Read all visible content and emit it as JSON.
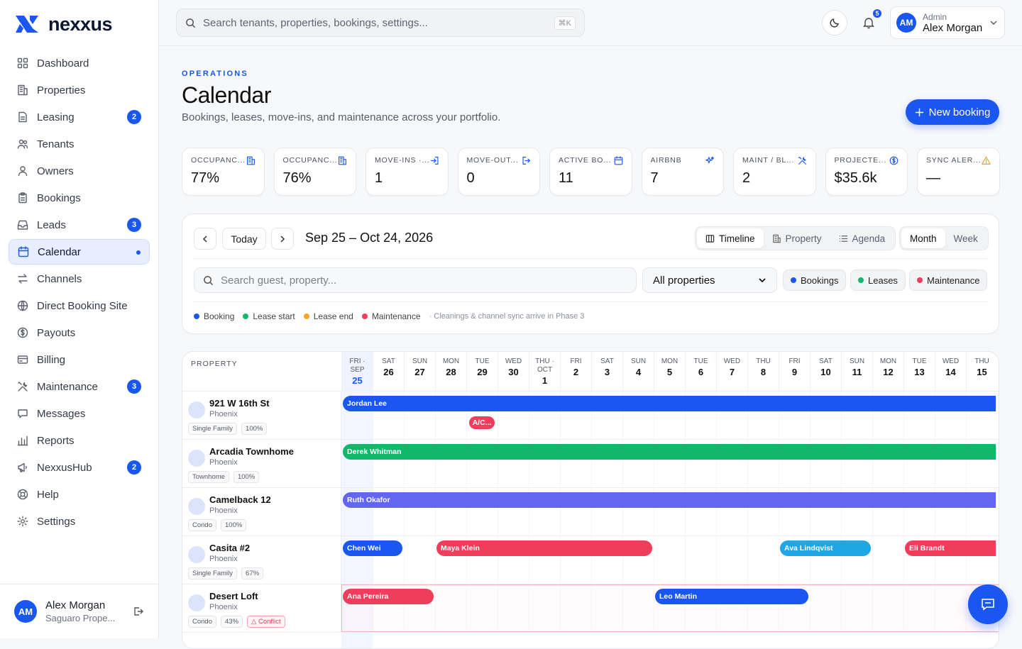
{
  "brand": {
    "name": "nexxus"
  },
  "sidebar": {
    "items": [
      {
        "label": "Dashboard",
        "icon": "grid-icon"
      },
      {
        "label": "Properties",
        "icon": "building-icon"
      },
      {
        "label": "Leasing",
        "icon": "document-icon",
        "badge": "2"
      },
      {
        "label": "Tenants",
        "icon": "users-icon"
      },
      {
        "label": "Owners",
        "icon": "user-icon"
      },
      {
        "label": "Bookings",
        "icon": "clipboard-icon"
      },
      {
        "label": "Leads",
        "icon": "inbox-icon",
        "badge": "3"
      },
      {
        "label": "Calendar",
        "icon": "calendar-icon",
        "active": true
      },
      {
        "label": "Channels",
        "icon": "arrows-icon"
      },
      {
        "label": "Direct Booking Site",
        "icon": "globe-icon"
      },
      {
        "label": "Payouts",
        "icon": "dollar-icon"
      },
      {
        "label": "Billing",
        "icon": "card-icon"
      },
      {
        "label": "Maintenance",
        "icon": "tools-icon",
        "badge": "3"
      },
      {
        "label": "Messages",
        "icon": "chat-icon"
      },
      {
        "label": "Reports",
        "icon": "chart-icon"
      },
      {
        "label": "NexxusHub",
        "icon": "megaphone-icon",
        "badge": "2"
      },
      {
        "label": "Help",
        "icon": "lifebuoy-icon"
      },
      {
        "label": "Settings",
        "icon": "gear-icon"
      }
    ],
    "user": {
      "initials": "AM",
      "name": "Alex Morgan",
      "org": "Saguaro Prope..."
    }
  },
  "topbar": {
    "search_placeholder": "Search tenants, properties, bookings, settings...",
    "shortcut": "⌘K",
    "notifications": "5",
    "user": {
      "initials": "AM",
      "role": "Admin",
      "name": "Alex Morgan"
    }
  },
  "page": {
    "eyebrow": "OPERATIONS",
    "title": "Calendar",
    "subtitle": "Bookings, leases, move-ins, and maintenance across your portfolio.",
    "new_button": "New booking"
  },
  "kpis": [
    {
      "label": "OCCUPANC...",
      "value": "77%",
      "icon": "building-icon",
      "color": "#1a56f0"
    },
    {
      "label": "OCCUPANC...",
      "value": "76%",
      "icon": "building-icon",
      "color": "#1a56f0"
    },
    {
      "label": "MOVE-INS ·...",
      "value": "1",
      "icon": "login-icon",
      "color": "#1a56f0"
    },
    {
      "label": "MOVE-OUT...",
      "value": "0",
      "icon": "logout-icon",
      "color": "#1a56f0"
    },
    {
      "label": "ACTIVE BO...",
      "value": "11",
      "icon": "calendar-icon",
      "color": "#1a56f0"
    },
    {
      "label": "AIRBNB",
      "value": "7",
      "icon": "sparkle-icon",
      "color": "#1a56f0"
    },
    {
      "label": "MAINT / BL...",
      "value": "2",
      "icon": "tools-icon",
      "color": "#1a56f0"
    },
    {
      "label": "PROJECTE...",
      "value": "$35.6k",
      "icon": "dollar-icon",
      "color": "#1a56f0"
    },
    {
      "label": "SYNC ALER...",
      "value": "—",
      "icon": "warning-icon",
      "color": "#f0a020"
    }
  ],
  "controls": {
    "today": "Today",
    "range": "Sep 25 – Oct 24, 2026",
    "views": [
      "Timeline",
      "Property",
      "Agenda"
    ],
    "modes": [
      "Month",
      "Week"
    ],
    "search_placeholder": "Search guest, property...",
    "property_filter": "All properties",
    "filters": [
      {
        "label": "Bookings",
        "color": "#1a56f0"
      },
      {
        "label": "Leases",
        "color": "#12b76a"
      },
      {
        "label": "Maintenance",
        "color": "#ef3e5c"
      }
    ],
    "legend": [
      {
        "label": "Booking",
        "color": "#1a56f0"
      },
      {
        "label": "Lease start",
        "color": "#12b76a"
      },
      {
        "label": "Lease end",
        "color": "#f5a623"
      },
      {
        "label": "Maintenance",
        "color": "#ef3e5c"
      }
    ],
    "legend_note": "· Cleanings & channel sync arrive in Phase 3"
  },
  "grid": {
    "property_header": "PROPERTY",
    "days": [
      {
        "dow": "FRI ·",
        "mon": "SEP",
        "num": "25",
        "today": true
      },
      {
        "dow": "SAT",
        "num": "26"
      },
      {
        "dow": "SUN",
        "num": "27"
      },
      {
        "dow": "MON",
        "num": "28"
      },
      {
        "dow": "TUE",
        "num": "29"
      },
      {
        "dow": "WED",
        "num": "30"
      },
      {
        "dow": "THU ·",
        "mon": "OCT",
        "num": "1"
      },
      {
        "dow": "FRI",
        "num": "2"
      },
      {
        "dow": "SAT",
        "num": "3"
      },
      {
        "dow": "SUN",
        "num": "4"
      },
      {
        "dow": "MON",
        "num": "5"
      },
      {
        "dow": "TUE",
        "num": "6"
      },
      {
        "dow": "WED",
        "num": "7"
      },
      {
        "dow": "THU",
        "num": "8"
      },
      {
        "dow": "FRI",
        "num": "9"
      },
      {
        "dow": "SAT",
        "num": "10"
      },
      {
        "dow": "SUN",
        "num": "11"
      },
      {
        "dow": "MON",
        "num": "12"
      },
      {
        "dow": "TUE",
        "num": "13"
      },
      {
        "dow": "WED",
        "num": "14"
      },
      {
        "dow": "THU",
        "num": "15"
      }
    ],
    "properties": [
      {
        "name": "921 W 16th St",
        "city": "Phoenix",
        "type": "Single Family",
        "occ": "100%",
        "events": [
          {
            "label": "Jordan Lee",
            "start": 0,
            "end": 21,
            "color": "#1a56f0"
          },
          {
            "label": "A/C...",
            "start": 4,
            "end": 5,
            "color": "#ef3e5c",
            "row": 2
          }
        ]
      },
      {
        "name": "Arcadia Townhome",
        "city": "Phoenix",
        "type": "Townhome",
        "occ": "100%",
        "events": [
          {
            "label": "Derek Whitman",
            "start": 0,
            "end": 21,
            "color": "#12b76a"
          }
        ]
      },
      {
        "name": "Camelback 12",
        "city": "Phoenix",
        "type": "Condo",
        "occ": "100%",
        "events": [
          {
            "label": "Ruth Okafor",
            "start": 0,
            "end": 21,
            "color": "#6366f1"
          }
        ]
      },
      {
        "name": "Casita #2",
        "city": "Phoenix",
        "type": "Single Family",
        "occ": "67%",
        "events": [
          {
            "label": "Chen Wei",
            "start": 0,
            "end": 2,
            "color": "#1a56f0"
          },
          {
            "label": "Maya Klein",
            "start": 3,
            "end": 10,
            "color": "#ef3e5c"
          },
          {
            "label": "Ava Lindqvist",
            "start": 14,
            "end": 17,
            "color": "#1ea7e4"
          },
          {
            "label": "Eli Brandt",
            "start": 18,
            "end": 21,
            "color": "#ef3e5c"
          }
        ]
      },
      {
        "name": "Desert Loft",
        "city": "Phoenix",
        "type": "Condo",
        "occ": "43%",
        "conflict": "Conflict",
        "events": [
          {
            "label": "Ana Pereira",
            "start": 0,
            "end": 3,
            "color": "#ef3e5c"
          },
          {
            "label": "Leo Martin",
            "start": 10,
            "end": 15,
            "color": "#1a56f0"
          }
        ]
      }
    ]
  }
}
